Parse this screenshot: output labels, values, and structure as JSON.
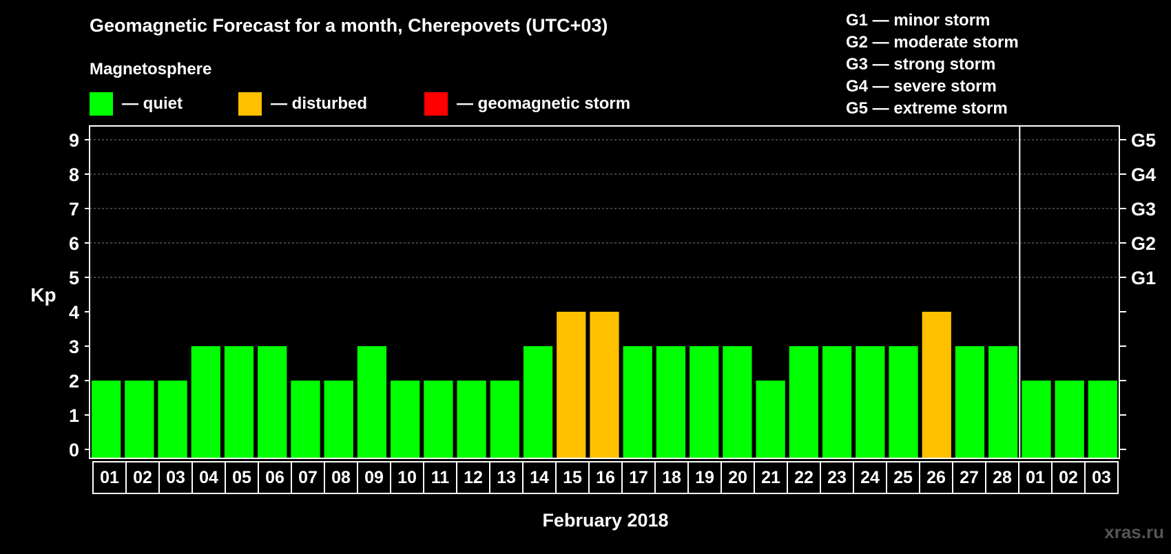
{
  "chart_data": {
    "type": "bar",
    "title": "Geomagnetic Forecast for a month, Cherepovets (UTC+03)",
    "legend_title": "Magnetosphere",
    "legend": [
      {
        "label": "— quiet",
        "color": "#00ff00"
      },
      {
        "label": "— disturbed",
        "color": "#ffc000"
      },
      {
        "label": "— geomagnetic storm",
        "color": "#ff0000"
      }
    ],
    "storm_scale": [
      "G1 — minor storm",
      "G2 — moderate storm",
      "G3 — strong storm",
      "G4 — severe storm",
      "G5 — extreme storm"
    ],
    "ylabel": "Kp",
    "xlabel": "February 2018",
    "ylim": [
      0,
      9
    ],
    "y_ticks": [
      "0",
      "1",
      "2",
      "3",
      "4",
      "5",
      "6",
      "7",
      "8",
      "9"
    ],
    "right_ticks": [
      {
        "value": 5,
        "label": "G1"
      },
      {
        "value": 6,
        "label": "G2"
      },
      {
        "value": 7,
        "label": "G3"
      },
      {
        "value": 8,
        "label": "G4"
      },
      {
        "value": 9,
        "label": "G5"
      }
    ],
    "gridlines": [
      5,
      6,
      7,
      8,
      9
    ],
    "categories": [
      "01",
      "02",
      "03",
      "04",
      "05",
      "06",
      "07",
      "08",
      "09",
      "10",
      "11",
      "12",
      "13",
      "14",
      "15",
      "16",
      "17",
      "18",
      "19",
      "20",
      "21",
      "22",
      "23",
      "24",
      "25",
      "26",
      "27",
      "28",
      "01",
      "02",
      "03"
    ],
    "values": [
      2,
      2,
      2,
      3,
      3,
      3,
      2,
      2,
      3,
      2,
      2,
      2,
      2,
      3,
      4,
      4,
      3,
      3,
      3,
      3,
      2,
      3,
      3,
      3,
      3,
      4,
      3,
      3,
      2,
      2,
      2
    ],
    "status": [
      "quiet",
      "quiet",
      "quiet",
      "quiet",
      "quiet",
      "quiet",
      "quiet",
      "quiet",
      "quiet",
      "quiet",
      "quiet",
      "quiet",
      "quiet",
      "quiet",
      "disturbed",
      "disturbed",
      "quiet",
      "quiet",
      "quiet",
      "quiet",
      "quiet",
      "quiet",
      "quiet",
      "quiet",
      "quiet",
      "disturbed",
      "quiet",
      "quiet",
      "quiet",
      "quiet",
      "quiet"
    ],
    "month_divider_after_index": 27,
    "watermark": "xras.ru"
  },
  "colors": {
    "quiet": "#00ff00",
    "disturbed": "#ffc000",
    "storm": "#ff0000",
    "background": "#000000",
    "foreground": "#ffffff",
    "grid": "#808080"
  }
}
